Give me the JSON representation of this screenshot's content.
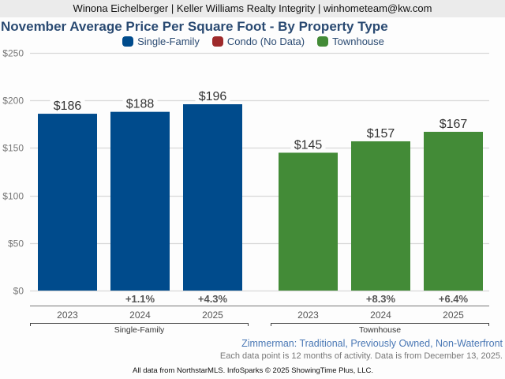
{
  "header": {
    "agent_line": "Winona Eichelberger | Keller Williams Realty Integrity | winhometeam@kw.com"
  },
  "chart_data": {
    "type": "bar",
    "title": "November Average Price Per Square Foot - By Property Type",
    "xlabel": "",
    "ylabel": "",
    "ylim": [
      0,
      250
    ],
    "yticks": [
      0,
      50,
      100,
      150,
      200,
      250
    ],
    "ytick_labels": [
      "$0",
      "$50",
      "$100",
      "$150",
      "$200",
      "$250"
    ],
    "grid": true,
    "legend_position": "top-center",
    "legend": [
      {
        "name": "Single-Family",
        "color": "#004b8c"
      },
      {
        "name": "Condo (No Data)",
        "color": "#9e2a2b"
      },
      {
        "name": "Townhouse",
        "color": "#438b37"
      }
    ],
    "groups": [
      {
        "name": "Single-Family",
        "color": "#004b8c",
        "categories": [
          "2023",
          "2024",
          "2025"
        ],
        "values": [
          186,
          188,
          196
        ],
        "value_labels": [
          "$186",
          "$188",
          "$196"
        ],
        "change_labels": [
          "",
          "+1.1%",
          "+4.3%"
        ]
      },
      {
        "name": "Townhouse",
        "color": "#438b37",
        "categories": [
          "2023",
          "2024",
          "2025"
        ],
        "values": [
          145,
          157,
          167
        ],
        "value_labels": [
          "$145",
          "$157",
          "$167"
        ],
        "change_labels": [
          "",
          "+8.3%",
          "+6.4%"
        ]
      }
    ]
  },
  "footer": {
    "geography": "Zimmerman: Traditional, Previously Owned, Non-Waterfront",
    "data_note": "Each data point is 12 months of activity. Data is from December 13, 2025.",
    "credit": "All data from NorthstarMLS. InfoSparks © 2025 ShowingTime Plus, LLC."
  }
}
